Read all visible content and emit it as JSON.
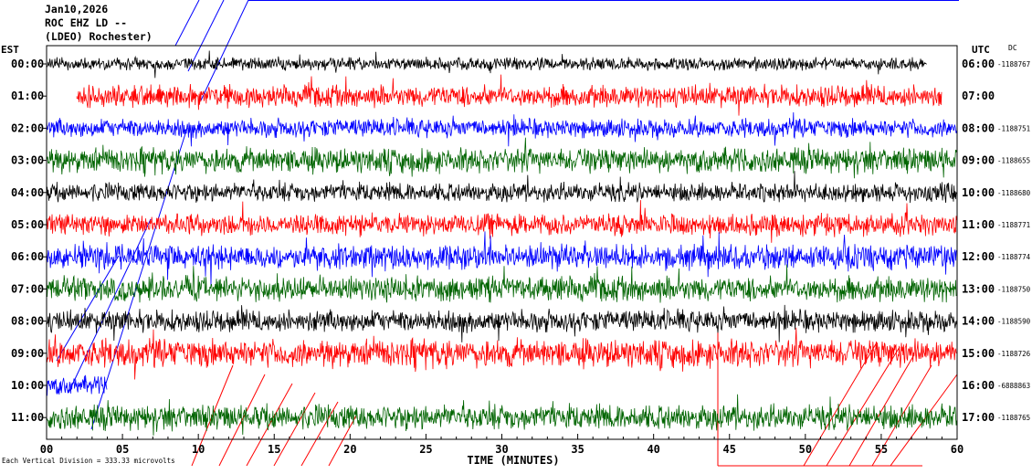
{
  "header": {
    "date": "Jan10,2026",
    "station": "ROC EHZ LD --",
    "network": "(LDEO) Rochester)"
  },
  "left_axis_label": "EST",
  "right_axis_label": "UTC",
  "dc_label": "DC",
  "footer": "Each Vertical Division = 333.33 microvolts",
  "colors": {
    "black": "#000000",
    "red": "#ff0000",
    "blue": "#0000ff",
    "green": "#006400",
    "frame": "#000000",
    "grid": "#000000",
    "overlay": "#0000ff"
  },
  "chart_data": {
    "type": "line",
    "title": "",
    "xlabel": "TIME (MINUTES)",
    "xlim": [
      0,
      60
    ],
    "x_ticks": [
      0,
      5,
      10,
      15,
      20,
      25,
      30,
      35,
      40,
      45,
      50,
      55,
      60
    ],
    "x_tick_labels": [
      "00",
      "05",
      "10",
      "15",
      "20",
      "25",
      "30",
      "35",
      "40",
      "45",
      "50",
      "55",
      "60"
    ],
    "series": [
      {
        "est": "00:00",
        "utc": "06:00",
        "dc": "-1188767",
        "color": "black",
        "start_min": 0,
        "end_min": 58
      },
      {
        "est": "01:00",
        "utc": "07:00",
        "dc": "",
        "color": "red",
        "start_min": 2,
        "end_min": 59
      },
      {
        "est": "02:00",
        "utc": "08:00",
        "dc": "-1188751",
        "color": "blue",
        "start_min": 0,
        "end_min": 60
      },
      {
        "est": "03:00",
        "utc": "09:00",
        "dc": "-1188655",
        "color": "green",
        "start_min": 0,
        "end_min": 60
      },
      {
        "est": "04:00",
        "utc": "10:00",
        "dc": "-1188680",
        "color": "black",
        "start_min": 0,
        "end_min": 60
      },
      {
        "est": "05:00",
        "utc": "11:00",
        "dc": "-1188771",
        "color": "red",
        "start_min": 0,
        "end_min": 60
      },
      {
        "est": "06:00",
        "utc": "12:00",
        "dc": "-1188774",
        "color": "blue",
        "start_min": 0,
        "end_min": 60
      },
      {
        "est": "07:00",
        "utc": "13:00",
        "dc": "-1188750",
        "color": "green",
        "start_min": 0,
        "end_min": 60
      },
      {
        "est": "08:00",
        "utc": "14:00",
        "dc": "-1188590",
        "color": "black",
        "start_min": 0,
        "end_min": 60
      },
      {
        "est": "09:00",
        "utc": "15:00",
        "dc": "-1188726",
        "color": "red",
        "start_min": 0,
        "end_min": 60
      },
      {
        "est": "10:00",
        "utc": "16:00",
        "dc": "-6888863",
        "color": "blue",
        "start_min": 0,
        "end_min": 4
      },
      {
        "est": "11:00",
        "utc": "17:00",
        "dc": "-1188765",
        "color": "green",
        "start_min": 0,
        "end_min": 60
      }
    ]
  }
}
